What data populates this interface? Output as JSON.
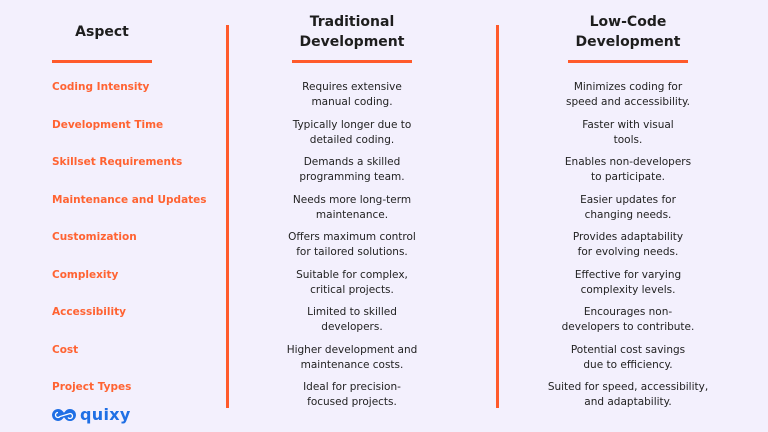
{
  "headers": {
    "aspect": "Aspect",
    "traditional": [
      "Traditional",
      "Development"
    ],
    "lowcode": [
      "Low-Code",
      "Development"
    ]
  },
  "rows": [
    {
      "aspect": "Coding Intensity",
      "traditional": [
        "Requires extensive",
        "manual coding."
      ],
      "lowcode": [
        "Minimizes coding for",
        "speed and accessibility."
      ]
    },
    {
      "aspect": "Development Time",
      "traditional": [
        "Typically longer due to",
        "detailed coding."
      ],
      "lowcode": [
        "Faster with visual",
        "tools."
      ]
    },
    {
      "aspect": "Skillset Requirements",
      "traditional": [
        "Demands a skilled",
        "programming team."
      ],
      "lowcode": [
        "Enables non-developers",
        "to participate."
      ]
    },
    {
      "aspect": "Maintenance and Updates",
      "traditional": [
        "Needs more long-term",
        "maintenance."
      ],
      "lowcode": [
        "Easier updates for",
        "changing needs."
      ]
    },
    {
      "aspect": "Customization",
      "traditional": [
        "Offers maximum control",
        "for tailored solutions."
      ],
      "lowcode": [
        "Provides adaptability",
        "for evolving needs."
      ]
    },
    {
      "aspect": "Complexity",
      "traditional": [
        "Suitable for complex,",
        "critical projects."
      ],
      "lowcode": [
        "Effective for varying",
        "complexity levels."
      ]
    },
    {
      "aspect": "Accessibility",
      "traditional": [
        "Limited to skilled",
        "developers."
      ],
      "lowcode": [
        "Encourages non-",
        "developers to contribute."
      ]
    },
    {
      "aspect": "Cost",
      "traditional": [
        "Higher development and",
        "maintenance costs."
      ],
      "lowcode": [
        "Potential cost savings",
        "due to efficiency."
      ]
    },
    {
      "aspect": "Project Types",
      "traditional": [
        "Ideal for precision-",
        "focused projects."
      ],
      "lowcode": [
        "Suited for speed, accessibility,",
        "and adaptability."
      ]
    }
  ],
  "logo": {
    "text": "quixy",
    "icon": "infinity-logo-icon"
  },
  "colors": {
    "accent": "#ff5a2b",
    "background": "#f3f0fd",
    "logo": "#1f6fe5"
  }
}
